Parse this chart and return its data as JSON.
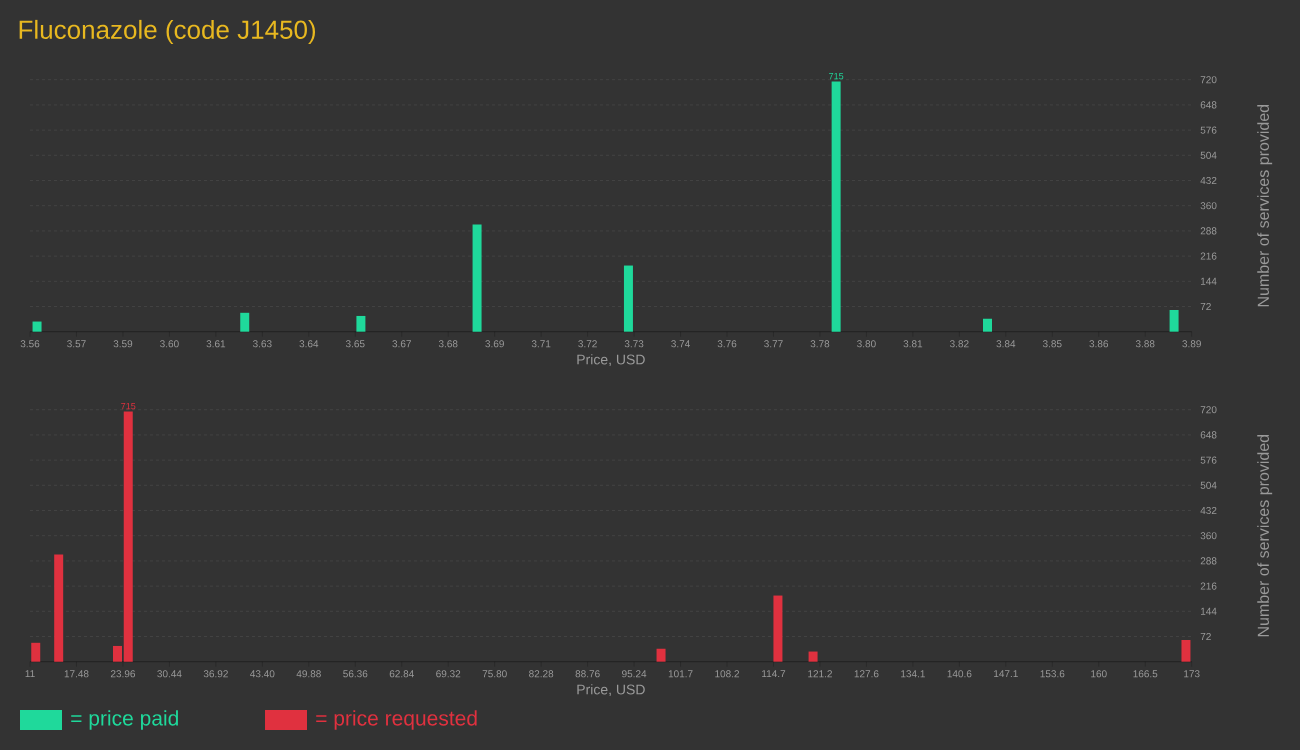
{
  "chart_data": [
    {
      "type": "bar",
      "title": "Fluconazole (code J1450)",
      "xlabel": "Price, USD",
      "ylabel": "Number of services provided",
      "x": [
        3.562,
        3.621,
        3.654,
        3.687,
        3.73,
        3.789,
        3.832,
        3.885
      ],
      "series": [
        {
          "name": "= price paid",
          "color": "#1fd99b",
          "values": [
            29,
            54,
            45,
            306,
            189,
            715,
            37,
            62
          ],
          "value_labels": [
            null,
            null,
            null,
            null,
            null,
            "715",
            null,
            null
          ]
        }
      ],
      "xlim": [
        3.56,
        3.89
      ],
      "xticks": [
        {
          "value": 3.56,
          "label": "3.56"
        },
        {
          "value": 3.5732,
          "label": "3.57"
        },
        {
          "value": 3.5864,
          "label": "3.59"
        },
        {
          "value": 3.5996,
          "label": "3.60"
        },
        {
          "value": 3.6128,
          "label": "3.61"
        },
        {
          "value": 3.626,
          "label": "3.63"
        },
        {
          "value": 3.6392,
          "label": "3.64"
        },
        {
          "value": 3.6524,
          "label": "3.65"
        },
        {
          "value": 3.6656,
          "label": "3.67"
        },
        {
          "value": 3.6788,
          "label": "3.68"
        },
        {
          "value": 3.692,
          "label": "3.69"
        },
        {
          "value": 3.7052,
          "label": "3.71"
        },
        {
          "value": 3.7184,
          "label": "3.72"
        },
        {
          "value": 3.7316,
          "label": "3.73"
        },
        {
          "value": 3.7448,
          "label": "3.74"
        },
        {
          "value": 3.758,
          "label": "3.76"
        },
        {
          "value": 3.7712,
          "label": "3.77"
        },
        {
          "value": 3.7844,
          "label": "3.78"
        },
        {
          "value": 3.7976,
          "label": "3.80"
        },
        {
          "value": 3.8108,
          "label": "3.81"
        },
        {
          "value": 3.824,
          "label": "3.82"
        },
        {
          "value": 3.8372,
          "label": "3.84"
        },
        {
          "value": 3.8504,
          "label": "3.85"
        },
        {
          "value": 3.8636,
          "label": "3.86"
        },
        {
          "value": 3.8768,
          "label": "3.88"
        },
        {
          "value": 3.89,
          "label": "3.89"
        }
      ],
      "ylim": [
        0,
        720
      ],
      "yticks": [
        72,
        144,
        216,
        288,
        360,
        432,
        504,
        576,
        648,
        720
      ],
      "grid": "y",
      "legend": "bottom"
    },
    {
      "type": "bar",
      "xlabel": "Price, USD",
      "ylabel": "Number of services provided",
      "x": [
        11.8,
        15.0,
        23.2,
        24.7,
        99.0,
        115.3,
        120.2,
        172.2
      ],
      "series": [
        {
          "name": "= price requested",
          "color": "#e0313f",
          "values": [
            54,
            306,
            45,
            715,
            37,
            189,
            29,
            62
          ],
          "value_labels": [
            null,
            null,
            null,
            "715",
            null,
            null,
            null,
            null
          ]
        }
      ],
      "xlim": [
        11,
        173
      ],
      "xticks": [
        11,
        17.48,
        23.96,
        30.44,
        36.92,
        {
          "value": 43.4,
          "label": "43.40"
        },
        49.88,
        56.36,
        62.84,
        69.32,
        {
          "value": 75.8,
          "label": "75.80"
        },
        82.28,
        88.76,
        95.24,
        {
          "value": 101.72,
          "label": "101.7"
        },
        108.2,
        {
          "value": 114.68,
          "label": "114.7"
        },
        {
          "value": 121.16,
          "label": "121.2"
        },
        {
          "value": 127.64,
          "label": "127.6"
        },
        {
          "value": 134.12,
          "label": "134.1"
        },
        140.6,
        {
          "value": 147.08,
          "label": "147.1"
        },
        {
          "value": 153.56,
          "label": "153.6"
        },
        {
          "value": 160.04,
          "label": "160"
        },
        {
          "value": 166.52,
          "label": "166.5"
        },
        173
      ],
      "ylim": [
        0,
        720
      ],
      "yticks": [
        72,
        144,
        216,
        288,
        360,
        432,
        504,
        576,
        648,
        720
      ],
      "grid": "y",
      "legend": "bottom"
    }
  ]
}
